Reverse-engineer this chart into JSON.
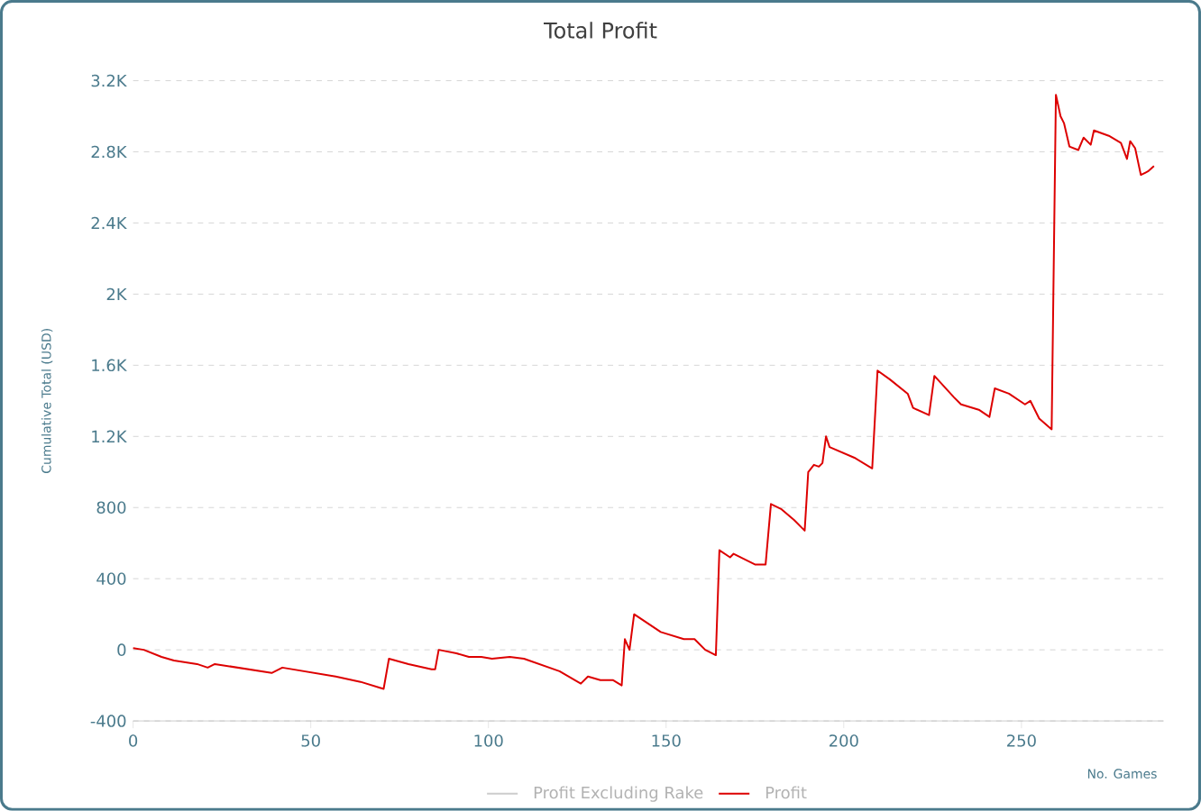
{
  "chart_data": {
    "type": "line",
    "title": "Total Profit",
    "xlabel": "No. Games",
    "ylabel": "Cumulative Total (USD)",
    "xlim": [
      0,
      290
    ],
    "xticks": [
      0,
      50,
      100,
      150,
      200,
      250
    ],
    "ylim": [
      -400,
      3200
    ],
    "yticks": [
      -400,
      0,
      400,
      800,
      {
        "value": 1200,
        "label": "1.2K"
      },
      {
        "value": 1600,
        "label": "1.6K"
      },
      {
        "value": 2000,
        "label": "2K"
      },
      {
        "value": 2400,
        "label": "2.4K"
      },
      {
        "value": 2800,
        "label": "2.8K"
      },
      {
        "value": 3200,
        "label": "3.2K"
      }
    ],
    "grid": "y",
    "legend": "bottom",
    "marker": "none",
    "line_style": "solid",
    "series": [
      {
        "name": "Profit Excluding Rake",
        "color": "#cccccc"
      },
      {
        "name": "Profit",
        "color": "#dd0000",
        "x": [
          0,
          3,
          8,
          11.5,
          18,
          21,
          23,
          39,
          42,
          57,
          64,
          70.5,
          72,
          77.5,
          84,
          85,
          86,
          91,
          94.5,
          98,
          101,
          106,
          110,
          120,
          126,
          128,
          131.5,
          135,
          137.5,
          138.4,
          139.7,
          141,
          148.5,
          155,
          158,
          161,
          164,
          165,
          168,
          169,
          175,
          178,
          179.5,
          182.5,
          186,
          189,
          190,
          191.6,
          193,
          194,
          195,
          196,
          203,
          208,
          209.5,
          213,
          218,
          219.5,
          224,
          225.5,
          231,
          233,
          238,
          241,
          242.5,
          246.5,
          251,
          252.5,
          255,
          258.5,
          259.7,
          261,
          262,
          263.5,
          266,
          267.5,
          269.5,
          270.4,
          274.6,
          278,
          279.7,
          280.6,
          282,
          283.6,
          285.6,
          287.3
        ],
        "values": [
          10,
          0,
          -40,
          -60,
          -80,
          -100,
          -80,
          -130,
          -100,
          -150,
          -180,
          -220,
          -50,
          -80,
          -110,
          -110,
          0,
          -20,
          -40,
          -40,
          -50,
          -40,
          -50,
          -120,
          -190,
          -150,
          -170,
          -170,
          -200,
          60,
          0,
          200,
          100,
          60,
          60,
          0,
          -30,
          560,
          520,
          540,
          480,
          480,
          820,
          790,
          730,
          670,
          1000,
          1040,
          1030,
          1050,
          1200,
          1140,
          1080,
          1020,
          1570,
          1520,
          1440,
          1360,
          1320,
          1540,
          1420,
          1380,
          1350,
          1310,
          1470,
          1440,
          1380,
          1400,
          1300,
          1240,
          3120,
          3000,
          2960,
          2830,
          2810,
          2880,
          2840,
          2920,
          2890,
          2850,
          2760,
          2860,
          2820,
          2670,
          2690,
          2720
        ]
      }
    ]
  }
}
